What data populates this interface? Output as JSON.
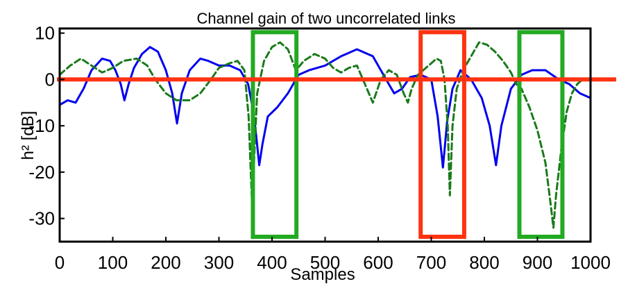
{
  "chart_data": {
    "type": "line",
    "title": "Channel gain of two uncorrelated links",
    "xlabel": "Samples",
    "ylabel": "h² [dB]",
    "xlim": [
      0,
      1000
    ],
    "ylim": [
      -35,
      11
    ],
    "xticks": [
      0,
      100,
      200,
      300,
      400,
      500,
      600,
      700,
      800,
      900,
      1000
    ],
    "yticks": [
      10,
      0,
      -10,
      -20,
      -30
    ],
    "grid": false,
    "legend": false,
    "series": [
      {
        "color": "#0000ee",
        "style": "solid",
        "points": [
          [
            0,
            -5.5
          ],
          [
            15,
            -4.5
          ],
          [
            30,
            -5
          ],
          [
            45,
            -2
          ],
          [
            60,
            2
          ],
          [
            80,
            4.5
          ],
          [
            95,
            4
          ],
          [
            105,
            2
          ],
          [
            115,
            -1
          ],
          [
            122,
            -4.5
          ],
          [
            130,
            -1
          ],
          [
            140,
            2.5
          ],
          [
            155,
            5.5
          ],
          [
            170,
            7
          ],
          [
            185,
            6
          ],
          [
            200,
            2
          ],
          [
            212,
            -3
          ],
          [
            221,
            -9.5
          ],
          [
            230,
            -3
          ],
          [
            245,
            2
          ],
          [
            265,
            4.5
          ],
          [
            280,
            4
          ],
          [
            300,
            3
          ],
          [
            320,
            3
          ],
          [
            340,
            2
          ],
          [
            355,
            -1
          ],
          [
            365,
            -7
          ],
          [
            370,
            -12
          ],
          [
            376,
            -18.5
          ],
          [
            382,
            -14
          ],
          [
            392,
            -8
          ],
          [
            410,
            -6
          ],
          [
            430,
            -3
          ],
          [
            450,
            1
          ],
          [
            470,
            2
          ],
          [
            500,
            3
          ],
          [
            530,
            5
          ],
          [
            560,
            6.5
          ],
          [
            590,
            5
          ],
          [
            610,
            1
          ],
          [
            630,
            -3
          ],
          [
            645,
            -2
          ],
          [
            660,
            0.5
          ],
          [
            680,
            1
          ],
          [
            700,
            0
          ],
          [
            712,
            -8
          ],
          [
            722,
            -19
          ],
          [
            730,
            -9
          ],
          [
            740,
            -2
          ],
          [
            755,
            2
          ],
          [
            775,
            0
          ],
          [
            795,
            -4
          ],
          [
            810,
            -10
          ],
          [
            822,
            -18.5
          ],
          [
            832,
            -10
          ],
          [
            850,
            -2
          ],
          [
            870,
            1
          ],
          [
            890,
            2
          ],
          [
            915,
            2
          ],
          [
            940,
            0
          ],
          [
            960,
            -1
          ],
          [
            980,
            -3
          ],
          [
            1000,
            -4
          ]
        ]
      },
      {
        "color": "#1a7a1a",
        "style": "dashed",
        "points": [
          [
            0,
            1
          ],
          [
            20,
            3
          ],
          [
            40,
            4.5
          ],
          [
            60,
            3
          ],
          [
            80,
            1.5
          ],
          [
            100,
            2.5
          ],
          [
            120,
            4
          ],
          [
            145,
            4.5
          ],
          [
            165,
            3
          ],
          [
            180,
            0
          ],
          [
            200,
            -3
          ],
          [
            220,
            -4.5
          ],
          [
            245,
            -4.5
          ],
          [
            265,
            -3
          ],
          [
            285,
            0
          ],
          [
            300,
            2.5
          ],
          [
            320,
            3.5
          ],
          [
            335,
            4
          ],
          [
            348,
            2
          ],
          [
            356,
            -8
          ],
          [
            360,
            -20
          ],
          [
            363,
            -28.5
          ],
          [
            366,
            -18
          ],
          [
            372,
            -3
          ],
          [
            385,
            4
          ],
          [
            400,
            7
          ],
          [
            415,
            8
          ],
          [
            430,
            6.5
          ],
          [
            445,
            2
          ],
          [
            460,
            4
          ],
          [
            480,
            5.5
          ],
          [
            500,
            4.5
          ],
          [
            515,
            2.5
          ],
          [
            530,
            1.5
          ],
          [
            545,
            2.5
          ],
          [
            560,
            3
          ],
          [
            575,
            -1
          ],
          [
            590,
            -5
          ],
          [
            605,
            0
          ],
          [
            620,
            2
          ],
          [
            635,
            1
          ],
          [
            648,
            -3
          ],
          [
            656,
            -5
          ],
          [
            663,
            -2
          ],
          [
            675,
            1
          ],
          [
            690,
            2.5
          ],
          [
            700,
            3.5
          ],
          [
            710,
            4.5
          ],
          [
            718,
            4
          ],
          [
            725,
            0
          ],
          [
            731,
            -10
          ],
          [
            735,
            -25
          ],
          [
            740,
            -10
          ],
          [
            748,
            -2
          ],
          [
            760,
            2
          ],
          [
            775,
            5
          ],
          [
            790,
            8
          ],
          [
            805,
            7.5
          ],
          [
            820,
            6
          ],
          [
            835,
            4
          ],
          [
            850,
            1.5
          ],
          [
            860,
            -1
          ],
          [
            870,
            -2
          ],
          [
            885,
            -6
          ],
          [
            900,
            -11
          ],
          [
            915,
            -18
          ],
          [
            925,
            -27
          ],
          [
            930,
            -32
          ],
          [
            935,
            -25
          ],
          [
            945,
            -15
          ],
          [
            955,
            -7
          ],
          [
            965,
            -3
          ],
          [
            975,
            -1
          ],
          [
            985,
            0
          ],
          [
            1000,
            0
          ]
        ]
      }
    ],
    "reference_line": {
      "y": 0,
      "color": "#ff3311"
    },
    "highlight_boxes": [
      {
        "x": [
          364,
          446
        ],
        "y": [
          -35,
          10.2
        ],
        "color": "#22aa22"
      },
      {
        "x": [
          680,
          762
        ],
        "y": [
          -35,
          10.2
        ],
        "color": "#ff3311"
      },
      {
        "x": [
          866,
          947
        ],
        "y": [
          -35,
          10.2
        ],
        "color": "#22aa22"
      }
    ]
  }
}
